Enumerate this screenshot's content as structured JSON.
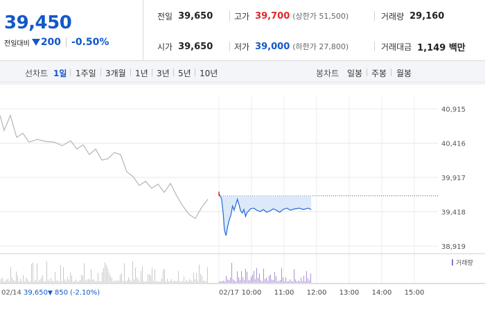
{
  "quote": {
    "price": "39,450",
    "change_label": "전일대비",
    "change_amount": "200",
    "change_rate": "-0.50%",
    "prev_close_label": "전일",
    "prev_close": "39,650",
    "high_label": "고가",
    "high": "39,700",
    "upper_limit": "(상한가 51,500)",
    "volume_label": "거래량",
    "volume": "29,160",
    "open_label": "시가",
    "open": "39,650",
    "low_label": "저가",
    "low": "39,000",
    "lower_limit": "(하한가 27,800)",
    "trade_value_label": "거래대금",
    "trade_value": "1,149 백만",
    "colors": {
      "up": "#e0282b",
      "down": "#1258c9"
    }
  },
  "tabs": {
    "line_label": "선차트",
    "line_items": [
      "1일",
      "1주일",
      "3개월",
      "1년",
      "3년",
      "5년",
      "10년"
    ],
    "active": "1일",
    "candle_label": "봉차트",
    "candle_items": [
      "일봉",
      "주봉",
      "월봉"
    ]
  },
  "chart_data": {
    "type": "line",
    "y_ticks": [
      "40,915",
      "40,416",
      "39,917",
      "39,418",
      "38,919"
    ],
    "x_ticks": [
      "10:00",
      "11:00",
      "12:00",
      "13:00",
      "14:00",
      "15:00"
    ],
    "volume_legend": "거래량",
    "prev_day_label": "02/14",
    "prev_day_close": "39,650",
    "prev_day_change": "850",
    "prev_day_rate": "(-2.10%)",
    "today_label": "02/17",
    "ylim": [
      38919,
      40915
    ],
    "prev_close_line": 39650,
    "prev_day_series": [
      {
        "x": 0.0,
        "y": 40820
      },
      {
        "x": 0.02,
        "y": 40600
      },
      {
        "x": 0.05,
        "y": 40820
      },
      {
        "x": 0.08,
        "y": 40500
      },
      {
        "x": 0.11,
        "y": 40560
      },
      {
        "x": 0.14,
        "y": 40430
      },
      {
        "x": 0.18,
        "y": 40470
      },
      {
        "x": 0.22,
        "y": 40440
      },
      {
        "x": 0.26,
        "y": 40430
      },
      {
        "x": 0.3,
        "y": 40380
      },
      {
        "x": 0.34,
        "y": 40450
      },
      {
        "x": 0.37,
        "y": 40330
      },
      {
        "x": 0.4,
        "y": 40390
      },
      {
        "x": 0.43,
        "y": 40250
      },
      {
        "x": 0.46,
        "y": 40330
      },
      {
        "x": 0.49,
        "y": 40170
      },
      {
        "x": 0.52,
        "y": 40190
      },
      {
        "x": 0.55,
        "y": 40280
      },
      {
        "x": 0.58,
        "y": 40250
      },
      {
        "x": 0.61,
        "y": 40000
      },
      {
        "x": 0.64,
        "y": 39930
      },
      {
        "x": 0.67,
        "y": 39800
      },
      {
        "x": 0.7,
        "y": 39860
      },
      {
        "x": 0.73,
        "y": 39760
      },
      {
        "x": 0.76,
        "y": 39820
      },
      {
        "x": 0.79,
        "y": 39700
      },
      {
        "x": 0.82,
        "y": 39830
      },
      {
        "x": 0.85,
        "y": 39650
      },
      {
        "x": 0.88,
        "y": 39500
      },
      {
        "x": 0.91,
        "y": 39380
      },
      {
        "x": 0.94,
        "y": 39320
      },
      {
        "x": 0.97,
        "y": 39480
      },
      {
        "x": 1.0,
        "y": 39600
      }
    ],
    "today_series": [
      {
        "t": "09:00",
        "y": 39680
      },
      {
        "t": "09:02",
        "y": 39650
      },
      {
        "t": "09:05",
        "y": 39600
      },
      {
        "t": "09:08",
        "y": 39380
      },
      {
        "t": "09:10",
        "y": 39160
      },
      {
        "t": "09:13",
        "y": 39070
      },
      {
        "t": "09:16",
        "y": 39200
      },
      {
        "t": "09:19",
        "y": 39300
      },
      {
        "t": "09:22",
        "y": 39370
      },
      {
        "t": "09:25",
        "y": 39500
      },
      {
        "t": "09:28",
        "y": 39440
      },
      {
        "t": "09:31",
        "y": 39520
      },
      {
        "t": "09:34",
        "y": 39600
      },
      {
        "t": "09:37",
        "y": 39520
      },
      {
        "t": "09:40",
        "y": 39430
      },
      {
        "t": "09:43",
        "y": 39400
      },
      {
        "t": "09:46",
        "y": 39450
      },
      {
        "t": "09:49",
        "y": 39350
      },
      {
        "t": "09:52",
        "y": 39410
      },
      {
        "t": "09:55",
        "y": 39430
      },
      {
        "t": "09:58",
        "y": 39460
      },
      {
        "t": "10:04",
        "y": 39470
      },
      {
        "t": "10:10",
        "y": 39440
      },
      {
        "t": "10:16",
        "y": 39420
      },
      {
        "t": "10:22",
        "y": 39450
      },
      {
        "t": "10:28",
        "y": 39410
      },
      {
        "t": "10:34",
        "y": 39430
      },
      {
        "t": "10:40",
        "y": 39460
      },
      {
        "t": "10:46",
        "y": 39440
      },
      {
        "t": "10:52",
        "y": 39410
      },
      {
        "t": "10:58",
        "y": 39450
      },
      {
        "t": "11:05",
        "y": 39470
      },
      {
        "t": "11:12",
        "y": 39440
      },
      {
        "t": "11:20",
        "y": 39460
      },
      {
        "t": "11:28",
        "y": 39470
      },
      {
        "t": "11:36",
        "y": 39450
      },
      {
        "t": "11:44",
        "y": 39470
      },
      {
        "t": "11:50",
        "y": 39450
      }
    ]
  }
}
